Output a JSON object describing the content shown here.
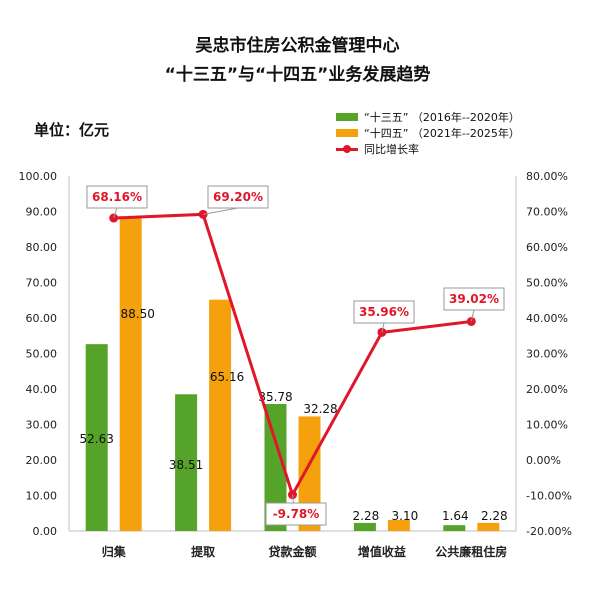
{
  "title_lines": [
    "吴忠市住房公积金管理中心",
    "“十三五”与“十四五”业务发展趋势"
  ],
  "unit_label": "单位：亿元",
  "colors": {
    "series_a": "#56a32a",
    "series_b": "#f4a10d",
    "growth": "#e0172a",
    "axis_text": "#222222",
    "grid": "#e6e6e6"
  },
  "chart_data": {
    "type": "bar",
    "categories": [
      "归集",
      "提取",
      "贷款金额",
      "增值收益",
      "公共廉租住房"
    ],
    "series": [
      {
        "name": "“十三五” （2016年--2020年）",
        "values": [
          52.63,
          38.51,
          35.78,
          2.28,
          1.64
        ]
      },
      {
        "name": "“十四五” （2021年--2025年）",
        "values": [
          88.5,
          65.16,
          32.28,
          3.1,
          2.28
        ]
      }
    ],
    "line_series": {
      "name": "同比增长率",
      "values": [
        68.16,
        69.2,
        -9.78,
        35.96,
        39.02
      ]
    },
    "value_labels": [
      [
        "52.63",
        "38.51",
        "35.78",
        "2.28",
        "1.64"
      ],
      [
        "88.50",
        "65.16",
        "32.28",
        "3.10",
        "2.28"
      ]
    ],
    "rate_labels": [
      "68.16%",
      "69.20%",
      "-9.78%",
      "35.96%",
      "39.02%"
    ],
    "ylim": [
      0,
      100
    ],
    "y2lim": [
      -20,
      80
    ],
    "yticks": [
      "0.00",
      "10.00",
      "20.00",
      "30.00",
      "40.00",
      "50.00",
      "60.00",
      "70.00",
      "80.00",
      "90.00",
      "100.00"
    ],
    "y2ticks": [
      "-20.00%",
      "-10.00%",
      "0.00%",
      "10.00%",
      "20.00%",
      "30.00%",
      "40.00%",
      "50.00%",
      "60.00%",
      "70.00%",
      "80.00%"
    ],
    "grid": false,
    "legend_position": "top-right"
  }
}
